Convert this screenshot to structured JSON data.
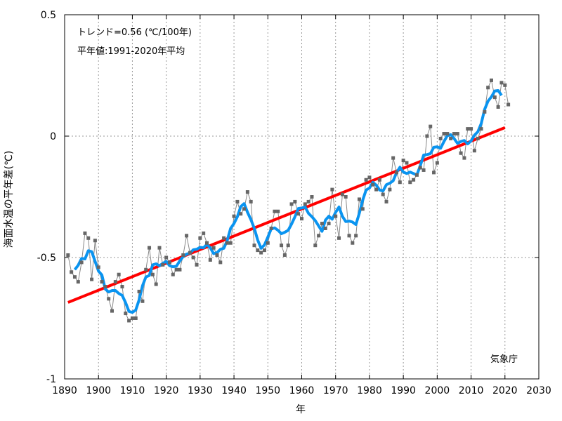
{
  "chart_data": {
    "type": "line",
    "xlabel": "年",
    "ylabel": "海面水温の平年差(℃)",
    "xlim": [
      1890,
      2030
    ],
    "ylim": [
      -1,
      0.5
    ],
    "x_ticks": [
      "1890",
      "1900",
      "1910",
      "1920",
      "1930",
      "1940",
      "1950",
      "1960",
      "1970",
      "1980",
      "1990",
      "2000",
      "2010",
      "2020",
      "2030"
    ],
    "y_ticks": [
      "0.5",
      "0",
      "-0.5",
      "-1"
    ],
    "y_tick_values": [
      0.5,
      0,
      -0.5,
      -1
    ],
    "grid": true,
    "annotations": {
      "trend": "トレンド=0.56 (℃/100年)",
      "normal": "平年値:1991-2020年平均",
      "source": "気象庁"
    },
    "colors": {
      "annual": "#666666",
      "running_mean": "#0a94f0",
      "trend": "#ff0000"
    },
    "x": [
      1891,
      1892,
      1893,
      1894,
      1895,
      1896,
      1897,
      1898,
      1899,
      1900,
      1901,
      1902,
      1903,
      1904,
      1905,
      1906,
      1907,
      1908,
      1909,
      1910,
      1911,
      1912,
      1913,
      1914,
      1915,
      1916,
      1917,
      1918,
      1919,
      1920,
      1921,
      1922,
      1923,
      1924,
      1925,
      1926,
      1927,
      1928,
      1929,
      1930,
      1931,
      1932,
      1933,
      1934,
      1935,
      1936,
      1937,
      1938,
      1939,
      1940,
      1941,
      1942,
      1943,
      1944,
      1945,
      1946,
      1947,
      1948,
      1949,
      1950,
      1951,
      1952,
      1953,
      1954,
      1955,
      1956,
      1957,
      1958,
      1959,
      1960,
      1961,
      1962,
      1963,
      1964,
      1965,
      1966,
      1967,
      1968,
      1969,
      1970,
      1971,
      1972,
      1973,
      1974,
      1975,
      1976,
      1977,
      1978,
      1979,
      1980,
      1981,
      1982,
      1983,
      1984,
      1985,
      1986,
      1987,
      1988,
      1989,
      1990,
      1991,
      1992,
      1993,
      1994,
      1995,
      1996,
      1997,
      1998,
      1999,
      2000,
      2001,
      2002,
      2003,
      2004,
      2005,
      2006,
      2007,
      2008,
      2009,
      2010,
      2011,
      2012,
      2013,
      2014,
      2015,
      2016,
      2017,
      2018,
      2019,
      2020,
      2021
    ],
    "series": [
      {
        "values": [
          -0.49,
          -0.56,
          -0.58,
          -0.6,
          -0.52,
          -0.4,
          -0.42,
          -0.59,
          -0.43,
          -0.54,
          -0.6,
          -0.62,
          -0.67,
          -0.72,
          -0.6,
          -0.57,
          -0.62,
          -0.73,
          -0.76,
          -0.75,
          -0.75,
          -0.64,
          -0.68,
          -0.55,
          -0.46,
          -0.57,
          -0.61,
          -0.46,
          -0.53,
          -0.5,
          -0.52,
          -0.57,
          -0.55,
          -0.55,
          -0.49,
          -0.41,
          -0.48,
          -0.5,
          -0.53,
          -0.42,
          -0.4,
          -0.44,
          -0.51,
          -0.46,
          -0.49,
          -0.52,
          -0.42,
          -0.44,
          -0.44,
          -0.33,
          -0.27,
          -0.32,
          -0.3,
          -0.23,
          -0.27,
          -0.45,
          -0.47,
          -0.48,
          -0.47,
          -0.44,
          -0.38,
          -0.31,
          -0.31,
          -0.45,
          -0.49,
          -0.45,
          -0.28,
          -0.27,
          -0.32,
          -0.34,
          -0.28,
          -0.27,
          -0.25,
          -0.45,
          -0.41,
          -0.36,
          -0.38,
          -0.36,
          -0.22,
          -0.33,
          -0.42,
          -0.24,
          -0.25,
          -0.41,
          -0.44,
          -0.41,
          -0.26,
          -0.3,
          -0.18,
          -0.17,
          -0.2,
          -0.22,
          -0.18,
          -0.24,
          -0.27,
          -0.22,
          -0.09,
          -0.15,
          -0.19,
          -0.1,
          -0.11,
          -0.19,
          -0.18,
          -0.16,
          -0.13,
          -0.14,
          0.0,
          0.04,
          -0.15,
          -0.11,
          -0.01,
          0.01,
          0.01,
          -0.01,
          0.01,
          0.01,
          -0.07,
          -0.09,
          0.03,
          0.03,
          -0.06,
          -0.01,
          0.03,
          0.1,
          0.2,
          0.23,
          0.16,
          0.12,
          0.22,
          0.21,
          0.13
        ]
      }
    ],
    "running_mean_window": 5,
    "trend_line": {
      "x": [
        1891,
        2020
      ],
      "y": [
        -0.685,
        0.035
      ]
    }
  }
}
